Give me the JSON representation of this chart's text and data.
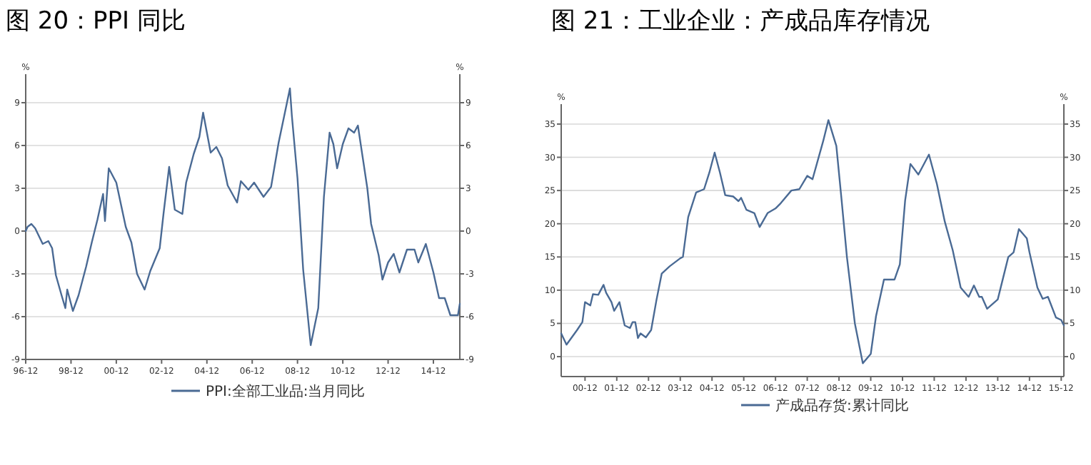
{
  "chart_data": [
    {
      "type": "line",
      "title": "图 20：PPI 同比",
      "ylabel": "%",
      "y2label": "%",
      "grid": "y",
      "legend": "bottom",
      "xlim": [
        "1996-12",
        "2016-02"
      ],
      "ylim": [
        -9,
        11
      ],
      "y2lim": [
        -9,
        11
      ],
      "yticks": [
        -9,
        -6,
        -3,
        0,
        3,
        6,
        9
      ],
      "y2ticks": [
        -9,
        -6,
        -3,
        0,
        3,
        6,
        9
      ],
      "xticks": [
        {
          "value": "1996-12",
          "label": "96-12"
        },
        {
          "value": "1998-12",
          "label": "98-12"
        },
        {
          "value": "2000-12",
          "label": "00-12"
        },
        {
          "value": "2002-12",
          "label": "02-12"
        },
        {
          "value": "2004-12",
          "label": "04-12"
        },
        {
          "value": "2006-12",
          "label": "06-12"
        },
        {
          "value": "2008-12",
          "label": "08-12"
        },
        {
          "value": "2010-12",
          "label": "10-12"
        },
        {
          "value": "2012-12",
          "label": "12-12"
        },
        {
          "value": "2014-12",
          "label": "14-12"
        }
      ],
      "x": [
        "1996-12",
        "1997-01",
        "1997-03",
        "1997-05",
        "1997-09",
        "1997-12",
        "1998-02",
        "1998-04",
        "1998-07",
        "1998-09",
        "1998-10",
        "1999-01",
        "1999-04",
        "1999-08",
        "1999-11",
        "2000-02",
        "2000-05",
        "2000-06",
        "2000-08",
        "2000-12",
        "2001-05",
        "2001-08",
        "2001-11",
        "2002-03",
        "2002-06",
        "2002-11",
        "2003-01",
        "2003-04",
        "2003-07",
        "2003-11",
        "2004-01",
        "2004-05",
        "2004-08",
        "2004-10",
        "2005-02",
        "2005-05",
        "2005-08",
        "2005-11",
        "2006-04",
        "2006-06",
        "2006-10",
        "2007-01",
        "2007-06",
        "2007-10",
        "2008-02",
        "2008-05",
        "2008-08",
        "2008-09",
        "2008-12",
        "2009-03",
        "2009-07",
        "2009-11",
        "2010-02",
        "2010-05",
        "2010-07",
        "2010-09",
        "2010-12",
        "2011-03",
        "2011-06",
        "2011-08",
        "2012-01",
        "2012-03",
        "2012-07",
        "2012-09",
        "2012-12",
        "2013-03",
        "2013-06",
        "2013-10",
        "2014-02",
        "2014-04",
        "2014-08",
        "2014-12",
        "2015-03",
        "2015-06",
        "2015-09",
        "2016-01",
        "2016-02"
      ],
      "series": [
        {
          "name": "PPI:全部工业品:当月同比",
          "color": "#4a6a94",
          "values": [
            0,
            0.3,
            0.5,
            0.2,
            -0.9,
            -0.7,
            -1.2,
            -3.1,
            -4.5,
            -5.4,
            -4.1,
            -5.6,
            -4.5,
            -2.5,
            -0.8,
            0.8,
            2.6,
            0.7,
            4.4,
            3.4,
            0.3,
            -0.8,
            -3.0,
            -4.1,
            -2.8,
            -1.2,
            1.2,
            4.5,
            1.5,
            1.2,
            3.4,
            5.4,
            6.6,
            8.3,
            5.5,
            5.9,
            5.1,
            3.2,
            2.0,
            3.5,
            2.9,
            3.4,
            2.4,
            3.1,
            6.2,
            8.1,
            10.0,
            8.1,
            3.7,
            -2.7,
            -8.0,
            -5.4,
            2.4,
            6.9,
            6.1,
            4.4,
            6.1,
            7.2,
            6.9,
            7.4,
            3.0,
            0.5,
            -1.7,
            -3.4,
            -2.2,
            -1.6,
            -2.9,
            -1.3,
            -1.3,
            -2.2,
            -0.9,
            -2.9,
            -4.7,
            -4.7,
            -5.9,
            -5.9,
            -5.1
          ]
        }
      ]
    },
    {
      "type": "line",
      "title": "图 21：工业企业：产成品库存情况",
      "ylabel": "%",
      "y2label": "%",
      "grid": "y",
      "legend": "bottom",
      "xlim": [
        "2000-03",
        "2016-01"
      ],
      "ylim": [
        -3,
        38
      ],
      "y2lim": [
        -3,
        38
      ],
      "yticks": [
        0,
        5,
        10,
        15,
        20,
        25,
        30,
        35
      ],
      "y2ticks": [
        0,
        5,
        10,
        15,
        20,
        25,
        30,
        35
      ],
      "xticks": [
        {
          "value": "2000-12",
          "label": "00-12"
        },
        {
          "value": "2001-12",
          "label": "01-12"
        },
        {
          "value": "2002-12",
          "label": "02-12"
        },
        {
          "value": "2003-12",
          "label": "03-12"
        },
        {
          "value": "2004-12",
          "label": "04-12"
        },
        {
          "value": "2005-12",
          "label": "05-12"
        },
        {
          "value": "2006-12",
          "label": "06-12"
        },
        {
          "value": "2007-12",
          "label": "07-12"
        },
        {
          "value": "2008-12",
          "label": "08-12"
        },
        {
          "value": "2009-12",
          "label": "09-12"
        },
        {
          "value": "2010-12",
          "label": "10-12"
        },
        {
          "value": "2011-12",
          "label": "11-12"
        },
        {
          "value": "2012-12",
          "label": "12-12"
        },
        {
          "value": "2013-12",
          "label": "13-12"
        },
        {
          "value": "2014-12",
          "label": "14-12"
        },
        {
          "value": "2015-12",
          "label": "15-12"
        }
      ],
      "x": [
        "2000-03",
        "2000-05",
        "2000-09",
        "2000-11",
        "2000-12",
        "2001-02",
        "2001-03",
        "2001-05",
        "2001-07",
        "2001-08",
        "2001-10",
        "2001-11",
        "2002-01",
        "2002-03",
        "2002-05",
        "2002-06",
        "2002-07",
        "2002-08",
        "2002-09",
        "2002-11",
        "2003-01",
        "2003-03",
        "2003-05",
        "2003-08",
        "2003-12",
        "2004-01",
        "2004-03",
        "2004-06",
        "2004-09",
        "2004-11",
        "2005-01",
        "2005-03",
        "2005-05",
        "2005-08",
        "2005-10",
        "2005-11",
        "2006-01",
        "2006-04",
        "2006-06",
        "2006-09",
        "2006-12",
        "2007-02",
        "2007-06",
        "2007-09",
        "2007-12",
        "2008-02",
        "2008-06",
        "2008-08",
        "2008-11",
        "2009-01",
        "2009-03",
        "2009-06",
        "2009-09",
        "2009-12",
        "2010-02",
        "2010-05",
        "2010-07",
        "2010-09",
        "2010-11",
        "2011-01",
        "2011-03",
        "2011-06",
        "2011-10",
        "2012-01",
        "2012-04",
        "2012-07",
        "2012-10",
        "2013-01",
        "2013-03",
        "2013-05",
        "2013-06",
        "2013-08",
        "2013-12",
        "2014-02",
        "2014-04",
        "2014-06",
        "2014-08",
        "2014-11",
        "2014-12",
        "2015-03",
        "2015-05",
        "2015-07",
        "2015-10",
        "2015-12",
        "2016-01"
      ],
      "series": [
        {
          "name": "产成品存货:累计同比",
          "color": "#4a6a94",
          "values": [
            3.5,
            1.8,
            4.0,
            5.2,
            8.2,
            7.7,
            9.4,
            9.3,
            10.8,
            9.6,
            8.2,
            6.9,
            8.2,
            4.7,
            4.3,
            5.2,
            5.2,
            2.8,
            3.5,
            2.9,
            4.0,
            8.5,
            12.5,
            13.6,
            14.8,
            15.0,
            21.0,
            24.7,
            25.2,
            27.7,
            30.7,
            27.7,
            24.3,
            24.1,
            23.4,
            23.9,
            22.1,
            21.6,
            19.5,
            21.6,
            22.3,
            23.1,
            25.0,
            25.2,
            27.2,
            26.7,
            32.4,
            35.6,
            31.7,
            23.5,
            15.0,
            5.0,
            -1.0,
            0.4,
            6.1,
            11.6,
            11.6,
            11.6,
            13.9,
            23.5,
            29.0,
            27.4,
            30.4,
            26.0,
            20.3,
            16.0,
            10.4,
            9.0,
            10.7,
            9.0,
            9.0,
            7.2,
            8.6,
            11.8,
            15.0,
            15.7,
            19.2,
            17.8,
            15.7,
            10.4,
            8.7,
            9.0,
            5.9,
            5.5,
            4.7
          ]
        }
      ]
    }
  ]
}
